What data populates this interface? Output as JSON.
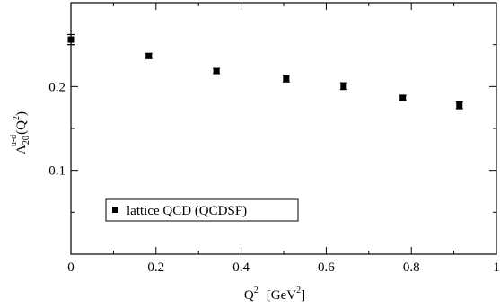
{
  "chart_data": {
    "type": "scatter",
    "title": "",
    "xlabel": {
      "base": "Q",
      "sup": "2",
      "unit_prefix": "[GeV",
      "unit_sup": "2",
      "unit_suffix": "]"
    },
    "ylabel": {
      "base": "A",
      "sub": "20",
      "sup": "u-d",
      "arg_prefix": "(Q",
      "arg_sup": "2",
      "arg_suffix": ")"
    },
    "xlim": [
      0,
      1
    ],
    "ylim": [
      0,
      0.3
    ],
    "xticks": [
      {
        "value": 0,
        "label": "0"
      },
      {
        "value": 0.2,
        "label": "0.2"
      },
      {
        "value": 0.4,
        "label": "0.4"
      },
      {
        "value": 0.6,
        "label": "0.6"
      },
      {
        "value": 0.8,
        "label": "0.8"
      },
      {
        "value": 1,
        "label": "1"
      }
    ],
    "yticks": [
      {
        "value": 0.1,
        "label": "0.1"
      },
      {
        "value": 0.2,
        "label": "0.2"
      }
    ],
    "grid": false,
    "legend": {
      "placement": "bottom-left",
      "entries": [
        "lattice QCD (QCDSF)"
      ]
    },
    "colors": {
      "marker": "#000000",
      "axis": "#000000"
    },
    "series": [
      {
        "name": "lattice QCD (QCDSF)",
        "marker": "square",
        "points": [
          {
            "x": 0.0,
            "y": 0.256,
            "err": 0.006
          },
          {
            "x": 0.183,
            "y": 0.2365,
            "err": 0.003
          },
          {
            "x": 0.342,
            "y": 0.2185,
            "err": 0.003
          },
          {
            "x": 0.506,
            "y": 0.2095,
            "err": 0.004
          },
          {
            "x": 0.641,
            "y": 0.2005,
            "err": 0.004
          },
          {
            "x": 0.78,
            "y": 0.1865,
            "err": 0.003
          },
          {
            "x": 0.913,
            "y": 0.1775,
            "err": 0.004
          }
        ]
      }
    ]
  }
}
